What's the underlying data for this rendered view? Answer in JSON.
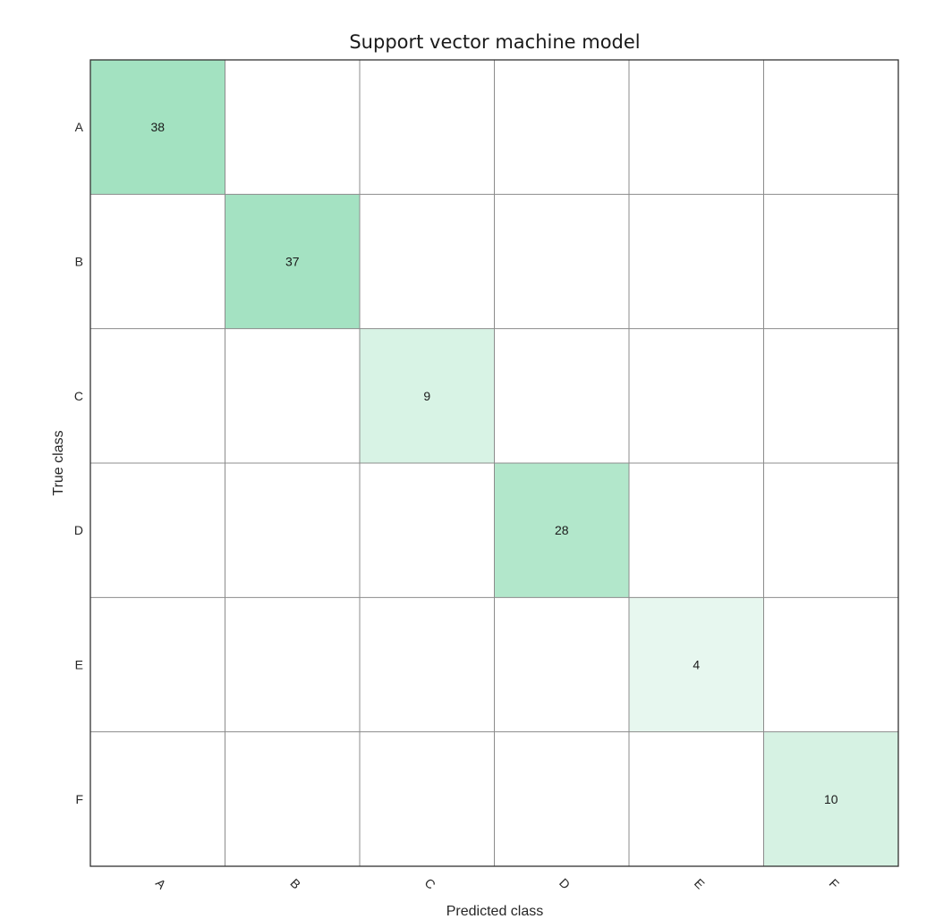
{
  "chart_data": {
    "type": "heatmap",
    "title": "Support vector machine model",
    "xlabel": "Predicted class",
    "ylabel": "True class",
    "row_labels": [
      "A",
      "B",
      "C",
      "D",
      "E",
      "F"
    ],
    "col_labels": [
      "A",
      "B",
      "C",
      "D",
      "E",
      "F"
    ],
    "cells": [
      {
        "row": "A",
        "col": "A",
        "value": 38
      },
      {
        "row": "B",
        "col": "B",
        "value": 37
      },
      {
        "row": "C",
        "col": "C",
        "value": 9
      },
      {
        "row": "D",
        "col": "D",
        "value": 28
      },
      {
        "row": "E",
        "col": "E",
        "value": 4
      },
      {
        "row": "F",
        "col": "F",
        "value": 10
      }
    ],
    "colors": {
      "max": "#a3e2c1",
      "min": "#ffffff",
      "grid": "#8c8c8c",
      "frame": "#333333"
    }
  }
}
